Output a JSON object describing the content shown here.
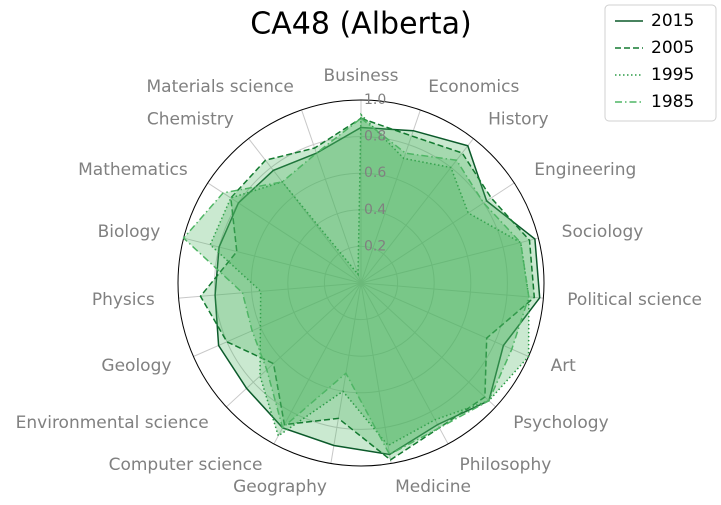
{
  "chart_data": {
    "type": "radar",
    "title": "CA48 (Alberta)",
    "categories": [
      "Business",
      "Economics",
      "History",
      "Engineering",
      "Sociology",
      "Political science",
      "Art",
      "Psychology",
      "Philosophy",
      "Medicine",
      "Geography",
      "Computer science",
      "Environmental science",
      "Geology",
      "Physics",
      "Biology",
      "Mathematics",
      "Chemistry",
      "Materials science"
    ],
    "series": [
      {
        "name": "2015",
        "color": "#0b5a2a",
        "linestyle": "solid",
        "values": [
          0.85,
          0.88,
          0.95,
          0.82,
          0.98,
          0.98,
          0.85,
          0.95,
          0.88,
          0.95,
          0.9,
          0.9,
          0.85,
          0.85,
          0.8,
          0.8,
          0.8,
          0.78,
          0.75
        ]
      },
      {
        "name": "2005",
        "color": "#137a30",
        "linestyle": "dashed",
        "values": [
          0.9,
          0.85,
          0.9,
          0.85,
          0.95,
          0.95,
          0.75,
          0.92,
          0.9,
          0.98,
          0.75,
          0.88,
          0.65,
          0.8,
          0.88,
          0.7,
          0.85,
          0.85,
          0.78
        ]
      },
      {
        "name": "1995",
        "color": "#2a9a45",
        "linestyle": "dotted",
        "values": [
          0.92,
          0.72,
          0.8,
          0.7,
          0.9,
          0.92,
          1.0,
          0.95,
          0.85,
          0.9,
          0.6,
          0.95,
          0.75,
          0.6,
          0.55,
          0.85,
          0.85,
          0.7,
          0.05
        ]
      },
      {
        "name": "1985",
        "color": "#4fb565",
        "linestyle": "dashdot",
        "values": [
          0.9,
          0.75,
          0.85,
          0.8,
          0.9,
          0.92,
          0.9,
          0.95,
          0.9,
          0.95,
          0.5,
          0.9,
          0.7,
          0.65,
          0.65,
          1.0,
          0.9,
          0.7,
          0.75
        ]
      }
    ],
    "rlim": [
      0,
      1
    ],
    "rticks": [
      0.2,
      0.4,
      0.6,
      0.8,
      {
        "value": 1,
        "label": "1.0"
      }
    ],
    "grid": true,
    "legend": "upper right"
  }
}
